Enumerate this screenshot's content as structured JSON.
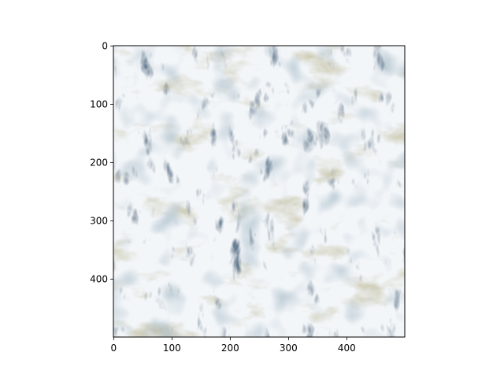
{
  "chart_data": {
    "type": "heatmap",
    "image_size": [
      500,
      500
    ],
    "xlim": [
      -0.5,
      499.5
    ],
    "ylim": [
      499.5,
      -0.5
    ],
    "x_ticks": [
      0,
      100,
      200,
      300,
      400
    ],
    "y_ticks": [
      0,
      100,
      200,
      300,
      400
    ],
    "x_tick_labels": [
      "0",
      "100",
      "200",
      "300",
      "400"
    ],
    "y_tick_labels": [
      "0",
      "100",
      "200",
      "300",
      "400"
    ],
    "title": "",
    "xlabel": "",
    "ylabel": "",
    "grid": false,
    "image_content": "snow-covered mountain terrain texture",
    "palette": {
      "snow": "#f3f6f9",
      "shadow": "#d5dde7",
      "rock_dark": "#22354d",
      "moss": "#8a8450",
      "sand": "#c7b98f",
      "slate": "#7d93a3",
      "axis": "#000000"
    }
  }
}
